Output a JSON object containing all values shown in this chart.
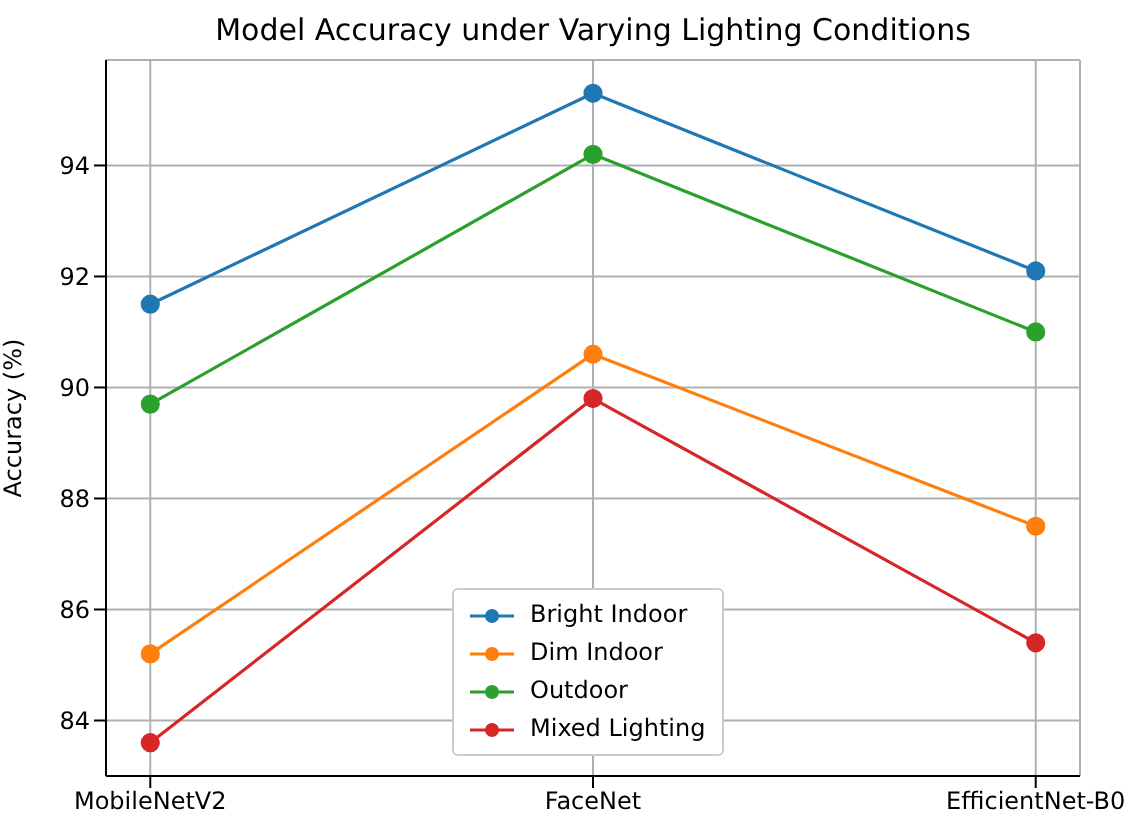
{
  "chart_data": {
    "type": "line",
    "title": "Model Accuracy under Varying Lighting Conditions",
    "ylabel": "Accuracy (%)",
    "categories": [
      "MobileNetV2",
      "FaceNet",
      "EfficientNet-B0"
    ],
    "series": [
      {
        "name": "Bright Indoor",
        "color": "#1f77b4",
        "values": [
          91.5,
          95.3,
          92.1
        ]
      },
      {
        "name": "Dim Indoor",
        "color": "#ff7f0e",
        "values": [
          85.2,
          90.6,
          87.5
        ]
      },
      {
        "name": "Outdoor",
        "color": "#2ca02c",
        "values": [
          89.7,
          94.2,
          91.0
        ]
      },
      {
        "name": "Mixed Lighting",
        "color": "#d62728",
        "values": [
          83.6,
          89.8,
          85.4
        ]
      }
    ],
    "ylim": [
      83.0,
      95.9
    ],
    "yticks": [
      84,
      86,
      88,
      90,
      92,
      94
    ],
    "grid": true,
    "legend": "bottom",
    "marker": "circle",
    "line_style": "solid"
  }
}
